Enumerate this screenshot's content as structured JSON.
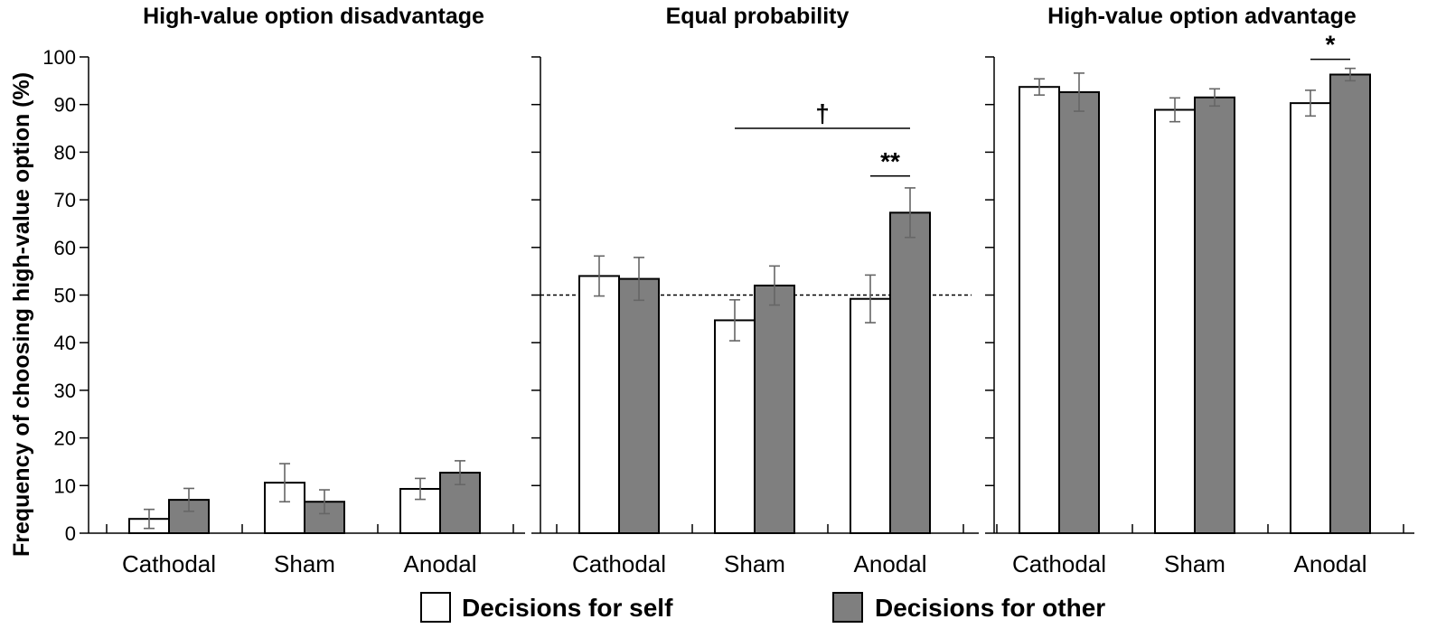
{
  "chart_data": {
    "type": "bar",
    "ylabel": "Frequency of choosing high-value option (%)",
    "ylim": [
      0,
      100
    ],
    "yticks": [
      0,
      10,
      20,
      30,
      40,
      50,
      60,
      70,
      80,
      90,
      100
    ],
    "legend": [
      {
        "name": "Decisions for self",
        "color": "#ffffff"
      },
      {
        "name": "Decisions for other",
        "color": "#7f7f7f"
      }
    ],
    "panels": [
      {
        "title": "High-value option disadvantage",
        "categories": [
          "Cathodal",
          "Sham",
          "Anodal"
        ],
        "series": [
          {
            "name": "Decisions for self",
            "values": [
              3.0,
              10.6,
              9.3
            ],
            "errors": [
              2.0,
              4.0,
              2.2
            ]
          },
          {
            "name": "Decisions for other",
            "values": [
              7.0,
              6.6,
              12.7
            ],
            "errors": [
              2.4,
              2.5,
              2.5
            ]
          }
        ],
        "reference_line": null,
        "annotations": []
      },
      {
        "title": "Equal probability",
        "categories": [
          "Cathodal",
          "Sham",
          "Anodal"
        ],
        "series": [
          {
            "name": "Decisions for self",
            "values": [
              54.0,
              44.7,
              49.2
            ],
            "errors": [
              4.2,
              4.3,
              5.0
            ]
          },
          {
            "name": "Decisions for other",
            "values": [
              53.4,
              52.0,
              67.3
            ],
            "errors": [
              4.5,
              4.1,
              5.2
            ]
          }
        ],
        "reference_line": 50,
        "annotations": [
          {
            "label": "†",
            "from": {
              "category": 1,
              "series": 0
            },
            "to": {
              "category": 2,
              "series": 1
            },
            "y": 85.0
          },
          {
            "label": "**",
            "from": {
              "category": 2,
              "series": 0
            },
            "to": {
              "category": 2,
              "series": 1
            },
            "y": 75.0
          }
        ]
      },
      {
        "title": "High-value option advantage",
        "categories": [
          "Cathodal",
          "Sham",
          "Anodal"
        ],
        "series": [
          {
            "name": "Decisions for self",
            "values": [
              93.7,
              88.9,
              90.3
            ],
            "errors": [
              1.7,
              2.5,
              2.7
            ]
          },
          {
            "name": "Decisions for other",
            "values": [
              92.6,
              91.5,
              96.3
            ],
            "errors": [
              4.0,
              1.8,
              1.3
            ]
          }
        ],
        "reference_line": null,
        "annotations": [
          {
            "label": "*",
            "from": {
              "category": 2,
              "series": 0
            },
            "to": {
              "category": 2,
              "series": 1
            },
            "y": 99.5
          }
        ]
      }
    ]
  }
}
